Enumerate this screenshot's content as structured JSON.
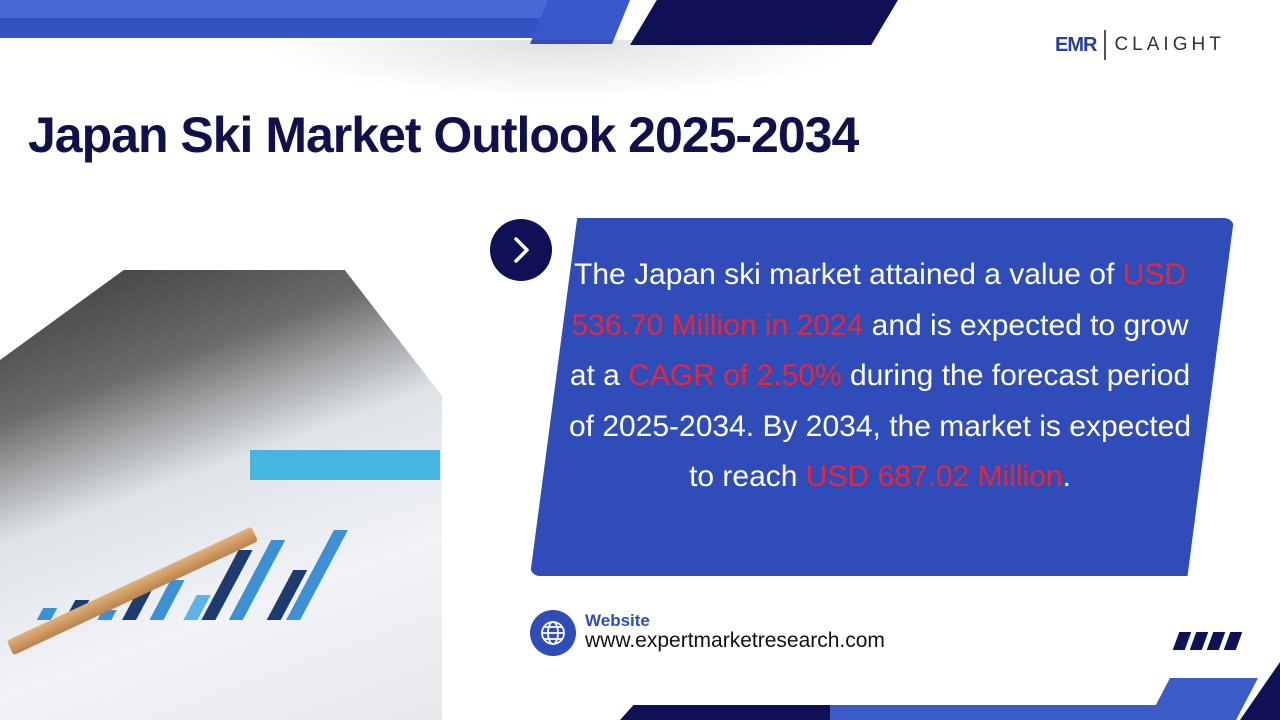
{
  "brand": {
    "logo_left": "EMR",
    "logo_right": "CLAIGHT"
  },
  "title": "Japan Ski Market Outlook 2025-2034",
  "summary": {
    "p1": "The Japan ski market attained a value of ",
    "h1": "USD 536.70 Million in 2024",
    "p2": " and is expected to grow at a ",
    "h2": "CAGR of 2.50%",
    "p3": " during the forecast period of 2025-2034. By 2034, the market is expected to reach ",
    "h3": "USD 687.02 Million",
    "p4": "."
  },
  "website": {
    "label": "Website",
    "url": "www.expertmarketresearch.com"
  },
  "colors": {
    "navy": "#0f1056",
    "blue": "#2f4cb9",
    "highlight": "#e8263a"
  },
  "icons": {
    "arrow": "chevron-right-icon",
    "globe": "globe-icon"
  }
}
